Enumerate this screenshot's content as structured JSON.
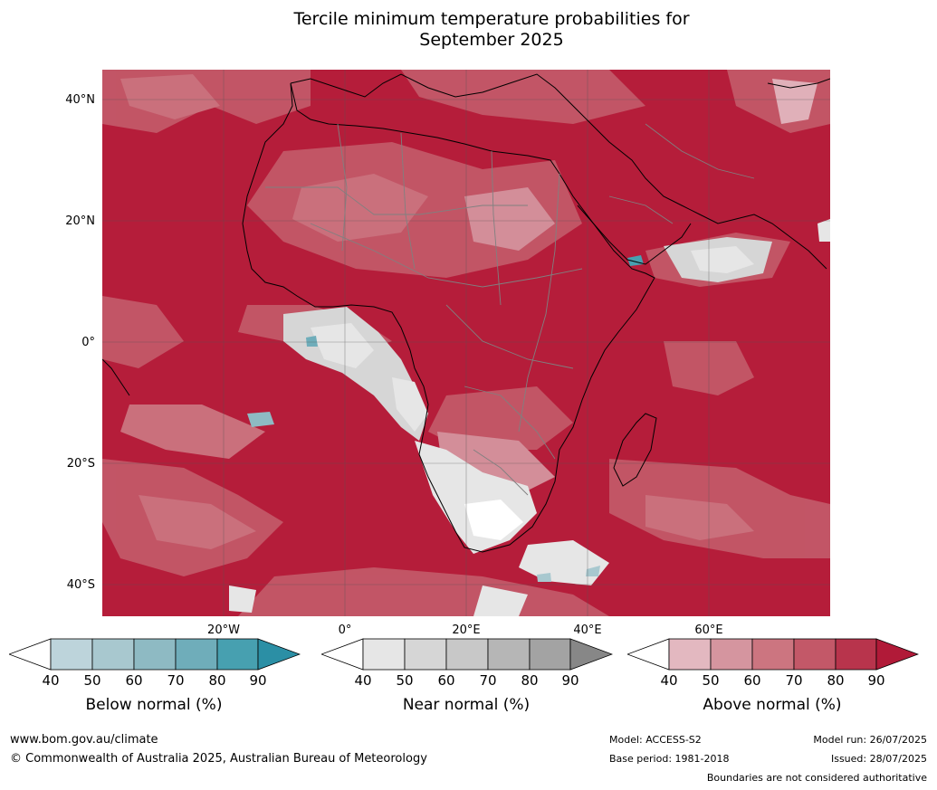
{
  "title": {
    "line1": "Tercile minimum temperature probabilities for",
    "line2": "September 2025"
  },
  "map": {
    "lat_labels": [
      "40°N",
      "20°N",
      "0°",
      "20°S",
      "40°S"
    ],
    "lon_labels": [
      "20°W",
      "0°",
      "20°E",
      "40°E",
      "60°E"
    ],
    "ocean_color": "#b51d3a",
    "coast_color": "#000000",
    "border_color": "#808080"
  },
  "colorbars": [
    {
      "label": "Below normal (%)",
      "ticks": [
        "40",
        "50",
        "60",
        "70",
        "80",
        "90"
      ],
      "colors": [
        "#ffffff",
        "#bdd4db",
        "#a8c8cf",
        "#8ebac3",
        "#6fadba",
        "#47a0b0",
        "#2b8fa5"
      ]
    },
    {
      "label": "Near normal (%)",
      "ticks": [
        "40",
        "50",
        "60",
        "70",
        "80",
        "90"
      ],
      "colors": [
        "#ffffff",
        "#e6e6e6",
        "#d6d6d6",
        "#c8c8c8",
        "#b6b6b6",
        "#a3a3a3",
        "#878787"
      ]
    },
    {
      "label": "Above normal (%)",
      "ticks": [
        "40",
        "50",
        "60",
        "70",
        "80",
        "90"
      ],
      "colors": [
        "#ffffff",
        "#e3b8c0",
        "#d5959f",
        "#cc7580",
        "#c35868",
        "#b8344c",
        "#b11a38"
      ]
    }
  ],
  "footer": {
    "url": "www.bom.gov.au/climate",
    "copyright": "© Commonwealth of Australia 2025, Australian Bureau of Meteorology",
    "model": "Model: ACCESS-S2",
    "base_period": "Base period: 1981-2018",
    "model_run": "Model run: 26/07/2025",
    "issued": "Issued: 28/07/2025",
    "disclaimer": "Boundaries are not considered authoritative"
  }
}
